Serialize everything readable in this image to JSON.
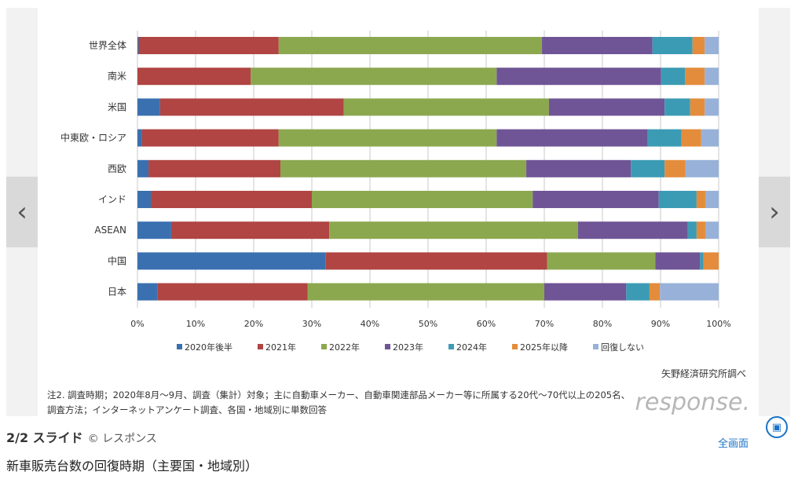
{
  "chart_data": {
    "type": "bar",
    "stacked": true,
    "orientation": "horizontal",
    "categories": [
      "世界全体",
      "南米",
      "米国",
      "中東欧・ロシア",
      "西欧",
      "インド",
      "ASEAN",
      "中国",
      "日本"
    ],
    "series": [
      {
        "name": "2020年後半",
        "color": "#3a70b0",
        "values": [
          0.2,
          0,
          3.9,
          0.8,
          1.9,
          2.3,
          5.8,
          32.4,
          3.4
        ]
      },
      {
        "name": "2021年",
        "color": "#b04543",
        "values": [
          24.1,
          19.5,
          31.6,
          23.5,
          22.7,
          27.7,
          27.2,
          38.1,
          25.9
        ]
      },
      {
        "name": "2022年",
        "color": "#8ca84f",
        "values": [
          45.3,
          42.3,
          35.3,
          37.5,
          42.3,
          38.0,
          42.8,
          18.6,
          40.7
        ]
      },
      {
        "name": "2023年",
        "color": "#6f5596",
        "values": [
          19.0,
          28.3,
          19.9,
          26.0,
          18.0,
          21.7,
          18.9,
          7.7,
          14.1
        ]
      },
      {
        "name": "2024年",
        "color": "#3c9bb4",
        "values": [
          6.9,
          4.1,
          4.4,
          5.8,
          5.8,
          6.5,
          1.5,
          0.6,
          4.0
        ]
      },
      {
        "name": "2025年以降",
        "color": "#e38c3b",
        "values": [
          2.1,
          3.4,
          2.5,
          3.4,
          3.6,
          1.5,
          1.5,
          2.6,
          1.8
        ]
      },
      {
        "name": "回復しない",
        "color": "#98b1d8",
        "values": [
          2.4,
          2.4,
          2.4,
          3.0,
          5.7,
          2.3,
          2.3,
          0,
          10.1
        ]
      }
    ],
    "xlim": [
      0,
      100
    ],
    "xticks": [
      "0%",
      "10%",
      "20%",
      "30%",
      "40%",
      "50%",
      "60%",
      "70%",
      "80%",
      "90%",
      "100%"
    ],
    "grid": true,
    "legend": "bottom"
  },
  "source": "矢野経済研究所調べ",
  "notes": [
    "注2. 調査時期；2020年8月～9月、調査（集計）対象；主に自動車メーカー、自動車関連部品メーカー等に所属する20代～70代以上の205名、",
    "調査方法；インターネットアンケート調査、各国・地域別に単数回答"
  ],
  "watermark": "response.",
  "caption": {
    "counter": "2/2 スライド",
    "copyright": "© レスポンス"
  },
  "fullscreen_label": "全画面",
  "title": "新車販売台数の回復時期（主要国・地域別）",
  "nav": {
    "prev": "‹",
    "next": "›"
  }
}
